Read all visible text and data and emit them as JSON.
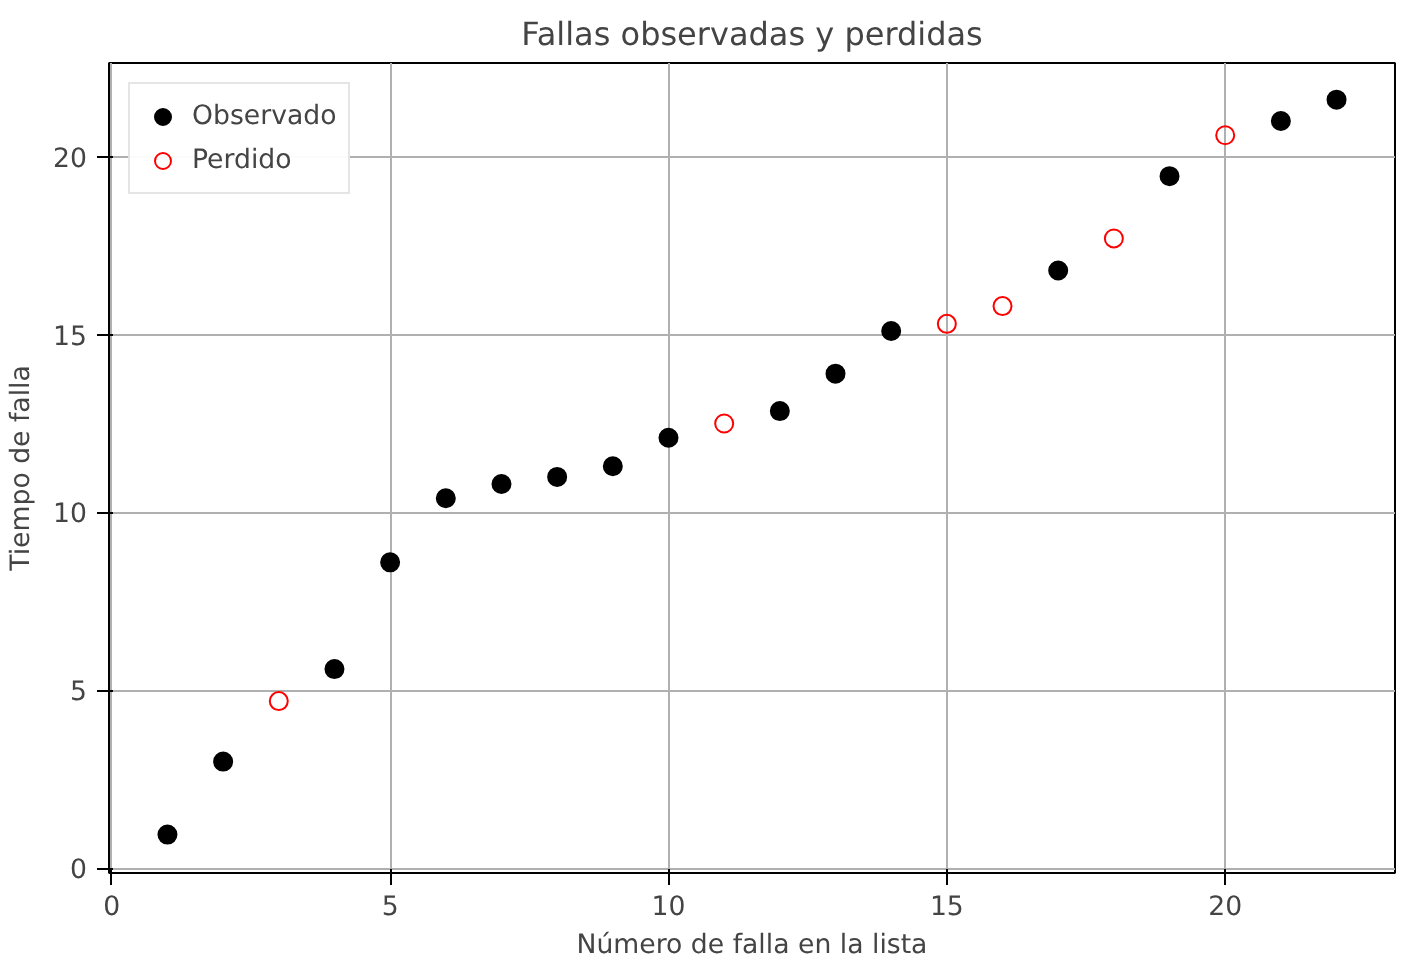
{
  "chart_data": {
    "type": "scatter",
    "title": "Fallas observadas y perdidas",
    "xlabel": "Número de falla en la lista",
    "ylabel": "Tiempo de falla",
    "series": [
      {
        "name": "Observado",
        "color": "#000000",
        "x": [
          1,
          2,
          4,
          5,
          6,
          7,
          8,
          9,
          10,
          12,
          13,
          14,
          17,
          19,
          21,
          22
        ],
        "values": [
          0.95,
          3.0,
          5.6,
          8.6,
          10.4,
          10.8,
          11.0,
          11.3,
          12.1,
          12.85,
          13.9,
          15.1,
          16.8,
          19.45,
          21.0,
          21.6
        ]
      },
      {
        "name": "Perdido",
        "color": "#ff0000",
        "x": [
          3,
          11,
          15,
          16,
          18,
          20
        ],
        "values": [
          4.7,
          12.5,
          15.3,
          15.8,
          17.7,
          20.6
        ]
      }
    ],
    "xlim": [
      -0.05,
      23.05
    ],
    "ylim": [
      -0.13,
      22.63
    ],
    "xticks": [
      0,
      5,
      10,
      15,
      20
    ],
    "yticks": [
      0,
      5,
      10,
      15,
      20
    ],
    "grid": true,
    "legend": "top left",
    "marker": "circle"
  }
}
